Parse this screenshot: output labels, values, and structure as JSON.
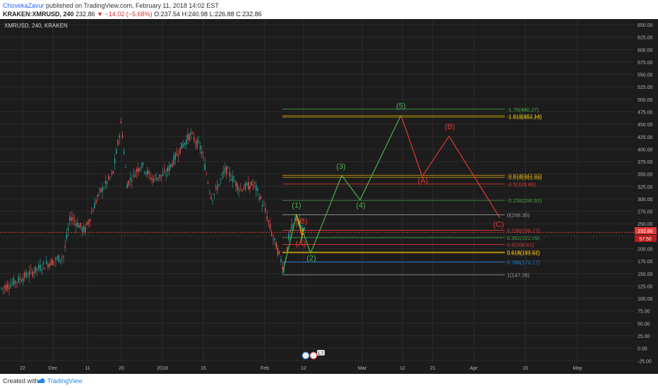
{
  "header": {
    "author": "ChovekaZavur",
    "published_text": "published on TradingView.com, February 11, 2018 14:02 EST",
    "symbol_line": "KRAKEN:XMRUSD, 240",
    "last": "232.86",
    "change": "−14.02 (−5.68%)",
    "open": "O:237.54",
    "high": "H:240.98",
    "low": "L:226.88",
    "close": "C:232.86"
  },
  "chart": {
    "legend": "XMRUSD, 240, KRAKEN",
    "price_badge": "232.86",
    "countdown_badge": "57:50",
    "corner_badge": "1.7",
    "y_ticks": [
      "650.00",
      "625.00",
      "600.00",
      "575.00",
      "550.00",
      "525.00",
      "500.00",
      "475.00",
      "450.00",
      "425.00",
      "400.00",
      "375.00",
      "350.00",
      "325.00",
      "300.00",
      "275.00",
      "250.00",
      "225.00",
      "200.00",
      "175.00",
      "150.00",
      "125.00",
      "100.00",
      "75.00",
      "50.00",
      "25.00",
      "0.00",
      "-25.00"
    ],
    "y_tick_values": [
      650,
      625,
      600,
      575,
      550,
      525,
      500,
      475,
      450,
      425,
      400,
      375,
      350,
      325,
      300,
      275,
      250,
      225,
      200,
      175,
      150,
      125,
      100,
      75,
      50,
      25,
      0,
      -25
    ],
    "x_ticks": [
      "22",
      "Dec",
      "11",
      "20",
      "2018",
      "15",
      "Feb",
      "12",
      "Mar",
      "12",
      "21",
      "Apr",
      "16",
      "May"
    ],
    "fib_labels": [
      {
        "text": "-1.75(480.27)",
        "price": 480.27,
        "color": "#4caf50"
      },
      {
        "text": "-1.618(467.14)",
        "price": 467.14,
        "color": "#d4b106"
      },
      {
        "text": "-1.618(464.29)",
        "price": 464.29,
        "color": "#d4b106"
      },
      {
        "text": "-0.618(347.07)",
        "price": 347.07,
        "color": "#e6a817"
      },
      {
        "text": "-0.618(343.49)",
        "price": 343.49,
        "color": "#d4b106"
      },
      {
        "text": "-0.5(329.86)",
        "price": 329.86,
        "color": "#e53935"
      },
      {
        "text": "-0.236(296.93)",
        "price": 296.93,
        "color": "#43a047"
      },
      {
        "text": "0(268.35)",
        "price": 268.35,
        "color": "#9e9e9e"
      },
      {
        "text": "0.236(236.77)",
        "price": 236.77,
        "color": "#e53935"
      },
      {
        "text": "0.382(222.09)",
        "price": 222.09,
        "color": "#43a047"
      },
      {
        "text": "0.5(208.61)",
        "price": 208.61,
        "color": "#e53935"
      },
      {
        "text": "0.618(193.52)",
        "price": 193.52,
        "color": "#e6a817"
      },
      {
        "text": "0.618(191.81)",
        "price": 191.81,
        "color": "#d4b106"
      },
      {
        "text": "0.786(173.17)",
        "price": 173.17,
        "color": "#1e88e5"
      },
      {
        "text": "1(147.26)",
        "price": 147.26,
        "color": "#9e9e9e"
      }
    ],
    "green_wave_labels": [
      "(1)",
      "(2)",
      "(3)",
      "(4)",
      "(5)"
    ],
    "red_wave_labels": [
      "B)",
      "(A)",
      "(A)",
      "(B)",
      "(C)"
    ],
    "colors": {
      "background": "#1c1c1c",
      "grid": "#2b2b2b",
      "axis_text": "#b2b5be",
      "up": "#26a69a",
      "down": "#ef5350",
      "green_wave": "#4caf50",
      "red_wave": "#e53935",
      "price_line": "#e53935"
    }
  },
  "footer": {
    "created": "Created with",
    "brand": "TradingView"
  }
}
